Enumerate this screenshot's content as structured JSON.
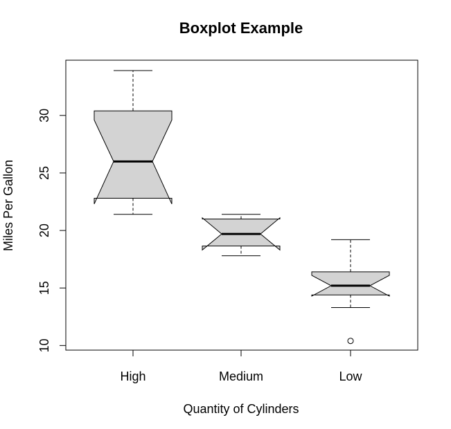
{
  "chart_data": {
    "type": "boxplot",
    "title": "Boxplot Example",
    "xlabel": "Quantity of Cylinders",
    "ylabel": "Miles Per Gallon",
    "categories": [
      "High",
      "Medium",
      "Low"
    ],
    "notched": true,
    "ylim": [
      9.6,
      34.8
    ],
    "yticks": [
      10,
      15,
      20,
      25,
      30
    ],
    "box_fill": "#d3d3d3",
    "stroke": "#000000",
    "boxes": [
      {
        "category": "High",
        "whisker_low": 21.4,
        "q1": 22.8,
        "median": 26.0,
        "q3": 30.4,
        "whisker_high": 33.9,
        "notch_low": 22.3,
        "notch_high": 29.6,
        "outliers": []
      },
      {
        "category": "Medium",
        "whisker_low": 17.8,
        "q1": 18.65,
        "median": 19.7,
        "q3": 21.0,
        "whisker_high": 21.4,
        "notch_low": 18.3,
        "notch_high": 21.1,
        "outliers": []
      },
      {
        "category": "Low",
        "whisker_low": 13.3,
        "q1": 14.4,
        "median": 15.2,
        "q3": 16.4,
        "whisker_high": 19.2,
        "notch_low": 14.3,
        "notch_high": 16.1,
        "outliers": [
          10.4
        ]
      }
    ],
    "grid": false,
    "legend": "none"
  }
}
